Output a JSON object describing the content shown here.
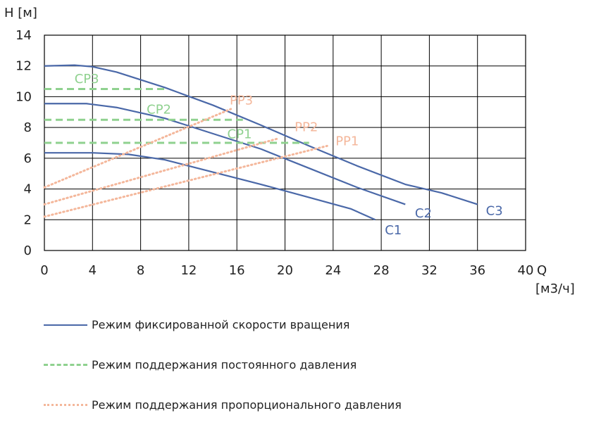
{
  "chart_data": {
    "type": "line",
    "ylabel": "H [м]",
    "xlabel_q": "Q",
    "xlabel_unit": "[м3/ч]",
    "xlim": [
      0,
      40
    ],
    "ylim": [
      0,
      14
    ],
    "x_ticks": [
      "0",
      "4",
      "8",
      "12",
      "16",
      "20",
      "24",
      "28",
      "32",
      "36",
      "40"
    ],
    "y_ticks": [
      "0",
      "2",
      "4",
      "6",
      "8",
      "10",
      "12",
      "14"
    ],
    "grid": true,
    "colors": {
      "fixed": "#4a68a8",
      "constant": "#8fd18f",
      "proportional": "#f4b79b"
    },
    "series": [
      {
        "name": "C1",
        "mode": "fixed",
        "points": [
          [
            0,
            6.35
          ],
          [
            4,
            6.35
          ],
          [
            7,
            6.25
          ],
          [
            10,
            5.9
          ],
          [
            14,
            5.1
          ],
          [
            18,
            4.3
          ],
          [
            22,
            3.45
          ],
          [
            25.5,
            2.7
          ],
          [
            27.5,
            2.0
          ]
        ]
      },
      {
        "name": "C2",
        "mode": "fixed",
        "points": [
          [
            0,
            9.55
          ],
          [
            3.5,
            9.55
          ],
          [
            6,
            9.3
          ],
          [
            10,
            8.6
          ],
          [
            14,
            7.6
          ],
          [
            18,
            6.6
          ],
          [
            22,
            5.35
          ],
          [
            26,
            4.1
          ],
          [
            30,
            3.0
          ]
        ]
      },
      {
        "name": "C3",
        "mode": "fixed",
        "points": [
          [
            0,
            12.0
          ],
          [
            2.5,
            12.05
          ],
          [
            4,
            11.95
          ],
          [
            6,
            11.6
          ],
          [
            10,
            10.6
          ],
          [
            14,
            9.45
          ],
          [
            18,
            8.15
          ],
          [
            22,
            6.8
          ],
          [
            26,
            5.5
          ],
          [
            30,
            4.3
          ],
          [
            33,
            3.75
          ],
          [
            36,
            3.0
          ]
        ]
      },
      {
        "name": "CP1",
        "mode": "constant",
        "points": [
          [
            0,
            7.0
          ],
          [
            22,
            7.0
          ]
        ]
      },
      {
        "name": "CP2",
        "mode": "constant",
        "points": [
          [
            0,
            8.5
          ],
          [
            16.5,
            8.5
          ]
        ]
      },
      {
        "name": "CP3",
        "mode": "constant",
        "points": [
          [
            0,
            10.5
          ],
          [
            10,
            10.5
          ]
        ]
      },
      {
        "name": "PP1",
        "mode": "proportional",
        "points": [
          [
            0,
            2.2
          ],
          [
            23.5,
            6.8
          ]
        ]
      },
      {
        "name": "PP2",
        "mode": "proportional",
        "points": [
          [
            0,
            3.0
          ],
          [
            19.5,
            7.3
          ]
        ]
      },
      {
        "name": "PP3",
        "mode": "proportional",
        "points": [
          [
            0,
            4.1
          ],
          [
            15.5,
            9.2
          ]
        ]
      }
    ],
    "curve_labels": [
      {
        "text": "C1",
        "x": 28.3,
        "y": 1.05,
        "mode": "fixed"
      },
      {
        "text": "C2",
        "x": 30.8,
        "y": 2.15,
        "mode": "fixed"
      },
      {
        "text": "C3",
        "x": 36.7,
        "y": 2.3,
        "mode": "fixed"
      },
      {
        "text": "CP1",
        "x": 15.2,
        "y": 7.3,
        "mode": "constant"
      },
      {
        "text": "CP2",
        "x": 8.5,
        "y": 8.9,
        "mode": "constant"
      },
      {
        "text": "CP3",
        "x": 2.5,
        "y": 10.9,
        "mode": "constant"
      },
      {
        "text": "PP1",
        "x": 24.2,
        "y": 6.85,
        "mode": "proportional"
      },
      {
        "text": "PP2",
        "x": 20.8,
        "y": 7.75,
        "mode": "proportional"
      },
      {
        "text": "PP3",
        "x": 15.4,
        "y": 9.5,
        "mode": "proportional"
      }
    ]
  },
  "legend": [
    {
      "label": "Режим фиксированной скорости вращения",
      "mode": "fixed"
    },
    {
      "label": "Режим поддержания постоянного давления",
      "mode": "constant"
    },
    {
      "label": "Режим поддержания пропорционального давления",
      "mode": "proportional"
    }
  ]
}
